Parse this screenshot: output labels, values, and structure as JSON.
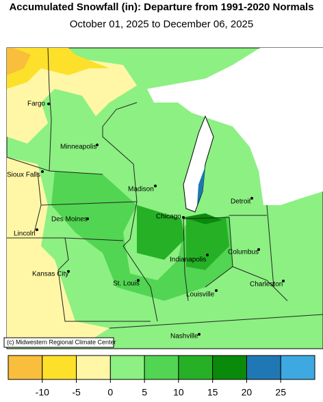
{
  "header": {
    "title": "Accumulated Snowfall (in): Departure from 1991-2020 Normals",
    "subtitle": "October 01, 2025 to December 06, 2025"
  },
  "cities": [
    {
      "label": "Fargo"
    },
    {
      "label": "Minneapolis"
    },
    {
      "label": "Sioux Falls"
    },
    {
      "label": "Madison"
    },
    {
      "label": "Des Moines"
    },
    {
      "label": "Chicago"
    },
    {
      "label": "Detroit"
    },
    {
      "label": "Lincoln"
    },
    {
      "label": "Indianapolis"
    },
    {
      "label": "Columbus"
    },
    {
      "label": "Kansas City"
    },
    {
      "label": "St. Louis"
    },
    {
      "label": "Charleston"
    },
    {
      "label": "Louisville"
    },
    {
      "label": "Nashville"
    }
  ],
  "credit": "(c) Midwestern Regional Climate Center",
  "colorbar": {
    "ticks": [
      -10,
      -5,
      0,
      5,
      10,
      15,
      20,
      25
    ],
    "colors": [
      "#f8be3c",
      "#fde02a",
      "#fff7a6",
      "#8cf082",
      "#52d552",
      "#26b026",
      "#0a8a0a",
      "#1f78b4",
      "#3ea8e0"
    ]
  }
}
